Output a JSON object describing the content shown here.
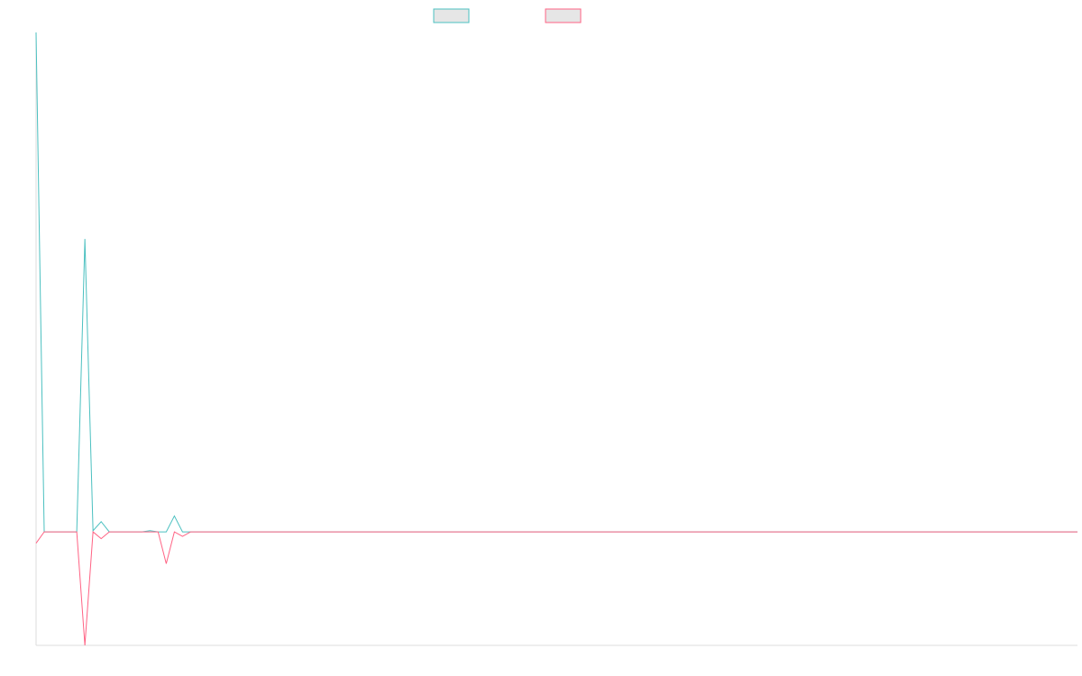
{
  "colors": {
    "series_1": "#4bc0c0",
    "series_2": "#ff6384",
    "legend_fill": "#e6e6e6",
    "axis": "#dddddd"
  },
  "chart_data": {
    "type": "line",
    "title": "",
    "xlabel": "",
    "ylabel": "",
    "x": [
      0,
      1,
      2,
      3,
      4,
      5,
      6,
      7,
      8,
      9,
      10,
      11,
      12,
      13,
      14,
      15,
      16,
      17,
      18,
      19,
      20,
      21,
      22,
      23,
      24,
      25,
      26,
      27,
      28,
      29,
      30,
      31,
      32,
      33,
      34,
      35,
      36,
      37,
      38,
      39,
      40,
      41,
      42,
      43,
      44,
      45,
      46,
      47,
      48,
      49,
      50,
      51,
      52,
      53,
      54,
      55,
      56,
      57,
      58,
      59,
      60,
      61,
      62,
      63,
      64,
      65,
      66,
      67,
      68,
      69,
      70,
      71,
      72,
      73,
      74,
      75,
      76,
      77,
      78,
      79,
      80,
      81,
      82,
      83,
      84,
      85,
      86,
      87,
      88,
      89,
      90,
      91,
      92,
      93,
      94,
      95,
      96,
      97,
      98,
      99,
      100,
      101,
      102,
      103,
      104,
      105,
      106,
      107,
      108,
      109,
      110,
      111,
      112,
      113,
      114,
      115,
      116,
      117,
      118,
      119,
      120,
      121,
      122,
      123,
      124,
      125,
      126,
      127,
      128
    ],
    "ylim": [
      -100,
      440
    ],
    "grid": false,
    "legend": "top-center",
    "series": [
      {
        "color": "#4bc0c0",
        "values": [
          440,
          0,
          0,
          0,
          0,
          0,
          258,
          1,
          9,
          0,
          0,
          0,
          0,
          0,
          1,
          0,
          0,
          14,
          0,
          0,
          0,
          0,
          0,
          0,
          0,
          0,
          0,
          0,
          0,
          0,
          0,
          0,
          0,
          0,
          0,
          0,
          0,
          0,
          0,
          0,
          0,
          0,
          0,
          0,
          0,
          0,
          0,
          0,
          0,
          0,
          0,
          0,
          0,
          0,
          0,
          0,
          0,
          0,
          0,
          0,
          0,
          0,
          0,
          0,
          0,
          0,
          0,
          0,
          0,
          0,
          0,
          0,
          0,
          0,
          0,
          0,
          0,
          0,
          0,
          0,
          0,
          0,
          0,
          0,
          0,
          0,
          0,
          0,
          0,
          0,
          0,
          0,
          0,
          0,
          0,
          0,
          0,
          0,
          0,
          0,
          0,
          0,
          0,
          0,
          0,
          0,
          0,
          0,
          0,
          0,
          0,
          0,
          0,
          0,
          0,
          0,
          0,
          0,
          0,
          0,
          0,
          0,
          0,
          0,
          0,
          0,
          0,
          0,
          0
        ]
      },
      {
        "color": "#ff6384",
        "values": [
          -10,
          0,
          0,
          0,
          0,
          0,
          -100,
          0,
          -6,
          0,
          0,
          0,
          0,
          0,
          0,
          0,
          -28,
          0,
          -4,
          0,
          0,
          0,
          0,
          0,
          0,
          0,
          0,
          0,
          0,
          0,
          0,
          0,
          0,
          0,
          0,
          0,
          0,
          0,
          0,
          0,
          0,
          0,
          0,
          0,
          0,
          0,
          0,
          0,
          0,
          0,
          0,
          0,
          0,
          0,
          0,
          0,
          0,
          0,
          0,
          0,
          0,
          0,
          0,
          0,
          0,
          0,
          0,
          0,
          0,
          0,
          0,
          0,
          0,
          0,
          0,
          0,
          0,
          0,
          0,
          0,
          0,
          0,
          0,
          0,
          0,
          0,
          0,
          0,
          0,
          0,
          0,
          0,
          0,
          0,
          0,
          0,
          0,
          0,
          0,
          0,
          0,
          0,
          0,
          0,
          0,
          0,
          0,
          0,
          0,
          0,
          0,
          0,
          0,
          0,
          0,
          0,
          0,
          0,
          0,
          0,
          0,
          0,
          0,
          0,
          0,
          0,
          0,
          0,
          0
        ]
      }
    ]
  }
}
